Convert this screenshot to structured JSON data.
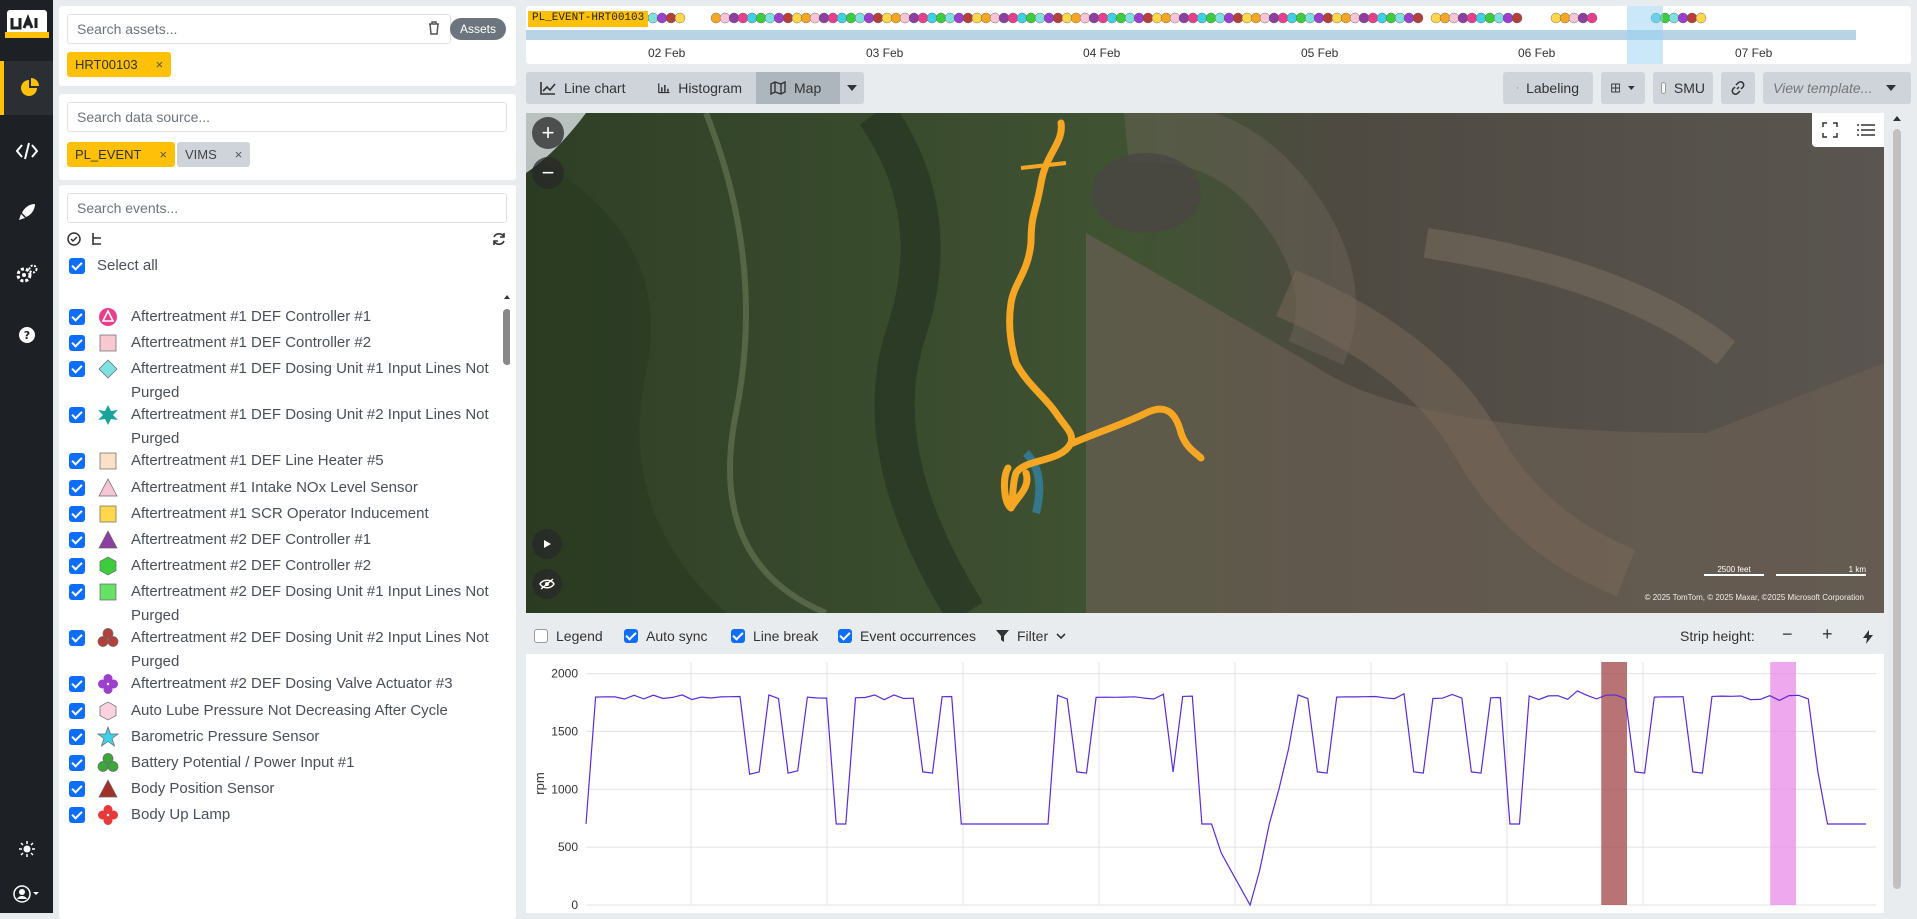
{
  "app": {
    "logo_alt": "UAI"
  },
  "nav": {
    "items": [
      "chart-icon",
      "code-icon",
      "rocket-icon",
      "gears-icon",
      "help-icon"
    ],
    "bottom": [
      "sun-icon",
      "user-icon"
    ]
  },
  "assets": {
    "placeholder": "Search assets...",
    "button": "Assets",
    "selected": [
      {
        "label": "HRT00103"
      }
    ]
  },
  "sources": {
    "placeholder": "Search data source...",
    "selected": [
      {
        "label": "PL_EVENT",
        "color": "#ffc107"
      },
      {
        "label": "VIMS",
        "color": "#ced4da"
      }
    ]
  },
  "events": {
    "placeholder": "Search events...",
    "select_all": "Select all",
    "items": [
      {
        "label": "Aftertreatment #1 DEF Controller #1",
        "icon": "circle-triangle",
        "color": "#e83e8c"
      },
      {
        "label": "Aftertreatment #1 DEF Controller #2",
        "icon": "square",
        "color": "#f8c8d0"
      },
      {
        "label": "Aftertreatment #1 DEF Dosing Unit #1 Input Lines Not Purged",
        "icon": "diamond",
        "color": "#7fe0e0"
      },
      {
        "label": "Aftertreatment #1 DEF Dosing Unit #2 Input Lines Not Purged",
        "icon": "star6",
        "color": "#1aa39a"
      },
      {
        "label": "Aftertreatment #1 DEF Line Heater #5",
        "icon": "square",
        "color": "#fde0c8"
      },
      {
        "label": "Aftertreatment #1 Intake NOx Level Sensor",
        "icon": "triangle",
        "color": "#f7c6d6"
      },
      {
        "label": "Aftertreatment #1 SCR Operator Inducement",
        "icon": "square",
        "color": "#ffd84d"
      },
      {
        "label": "Aftertreatment #2 DEF Controller #1",
        "icon": "triangle",
        "color": "#8b3fa0"
      },
      {
        "label": "Aftertreatment #2 DEF Controller #2",
        "icon": "hexagon",
        "color": "#3ccc3c"
      },
      {
        "label": "Aftertreatment #2 DEF Dosing Unit #1 Input Lines Not Purged",
        "icon": "square",
        "color": "#66e066"
      },
      {
        "label": "Aftertreatment #2 DEF Dosing Unit #2 Input Lines Not Purged",
        "icon": "trefoil",
        "color": "#b3403a"
      },
      {
        "label": "Aftertreatment #2 DEF Dosing Valve Actuator #3",
        "icon": "clover",
        "color": "#9b3fcf"
      },
      {
        "label": "Auto Lube Pressure Not Decreasing After Cycle",
        "icon": "hexagon",
        "color": "#fbd3e0"
      },
      {
        "label": "Barometric Pressure Sensor",
        "icon": "star5",
        "color": "#3fd0e8"
      },
      {
        "label": "Battery Potential / Power Input #1",
        "icon": "trefoil",
        "color": "#3aa83a"
      },
      {
        "label": "Body Position Sensor",
        "icon": "triangle",
        "color": "#a0302a"
      },
      {
        "label": "Body Up Lamp",
        "icon": "clover",
        "color": "#e83a3a"
      }
    ]
  },
  "timeline": {
    "tag": "PL_EVENT-HRT00103",
    "ticks": [
      "02 Feb",
      "03 Feb",
      "04 Feb",
      "05 Feb",
      "06 Feb",
      "07 Feb"
    ]
  },
  "toolbar": {
    "line_chart": "Line chart",
    "histogram": "Histogram",
    "map": "Map",
    "labeling": "Labeling",
    "smu": "SMU",
    "template_placeholder": "View template..."
  },
  "map": {
    "scale_ft": "2500 feet",
    "scale_km": "1 km",
    "attribution": "© 2025 TomTom, © 2025 Maxar, ©2025 Microsoft Corporation",
    "route_color": "#f5a623"
  },
  "options": {
    "legend": "Legend",
    "auto_sync": "Auto sync",
    "line_break": "Line break",
    "event_occurrences": "Event occurrences",
    "filter": "Filter",
    "strip_height": "Strip height:"
  },
  "chart_data": {
    "type": "line",
    "ylabel": "rpm",
    "yticks": [
      0,
      500,
      1000,
      1500,
      2000
    ],
    "ylim": [
      0,
      2100
    ],
    "series": [
      {
        "color": "#5b2bd6",
        "values": [
          700,
          1800,
          1790,
          1810,
          1780,
          1800,
          1790,
          1810,
          1770,
          1800,
          1810,
          1790,
          1800,
          1780,
          1810,
          1800,
          1790,
          1130,
          1150,
          1800,
          1790,
          1140,
          1160,
          1800,
          1780,
          1800,
          700,
          700,
          1800,
          1790,
          1800,
          1780,
          1810,
          1800,
          1790,
          1150,
          1140,
          1800,
          1790,
          700,
          700,
          700,
          700,
          700,
          700,
          700,
          700,
          700,
          700,
          1800,
          1790,
          1150,
          1140,
          1800,
          1790,
          1810,
          1800,
          1790,
          1800,
          1780,
          1810,
          1150,
          1800,
          1790,
          700,
          700,
          450,
          300,
          150,
          0,
          300,
          700,
          1000,
          1350,
          1800,
          1790,
          1150,
          1140,
          1800,
          1790,
          1810,
          1800,
          1790,
          1800,
          1780,
          1810,
          1150,
          1140,
          1800,
          1790,
          1810,
          1800,
          1150,
          1140,
          1800,
          1790,
          700,
          700,
          1800,
          1790,
          1810,
          1800,
          1790,
          1850,
          1800,
          1790,
          1810,
          1800,
          1790,
          1150,
          1140,
          1800,
          1790,
          1810,
          1800,
          1150,
          1140,
          1800,
          1790,
          1810,
          1800,
          1790,
          1780,
          1800,
          1780,
          1810,
          1800,
          1790,
          1150,
          700,
          700,
          700,
          700,
          700
        ]
      }
    ],
    "highlights": [
      {
        "start": 0.787,
        "end": 0.807,
        "color": "#a04545"
      },
      {
        "start": 0.918,
        "end": 0.938,
        "color": "#e88be8"
      }
    ]
  }
}
